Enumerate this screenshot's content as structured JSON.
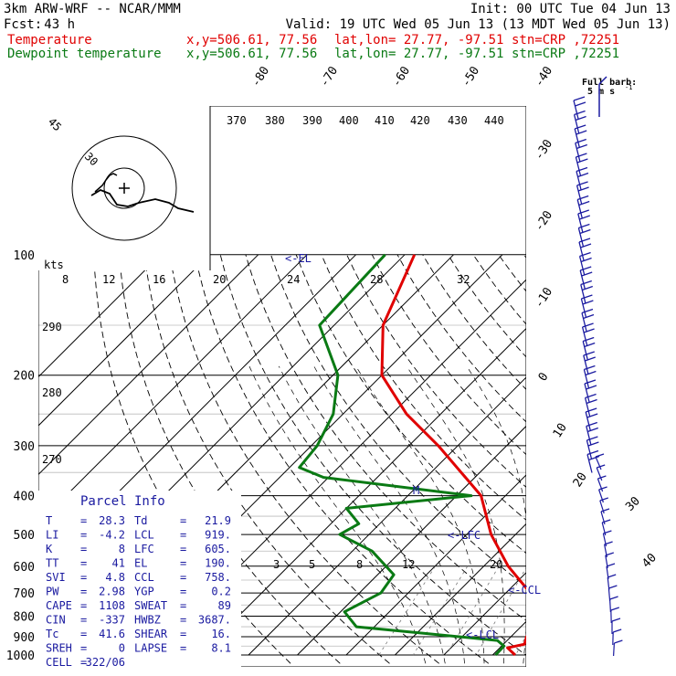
{
  "header": {
    "model": "3km ARW-WRF -- NCAR/MMM",
    "init": "Init: 00 UTC Tue 04 Jun 13",
    "fcst_label": "Fcst:",
    "fcst_value": "43 h",
    "valid": "Valid: 19 UTC Wed 05 Jun 13 (13 MDT Wed 05 Jun 13)",
    "temp_label": "Temperature",
    "dew_label": "Dewpoint temperature",
    "xy": "x,y=506.61, 77.56",
    "latlon": "lat,lon= 27.77, -97.51",
    "stn": "stn=CRP ,72251",
    "color_temp": "#e00000",
    "color_dew": "#0a7a14",
    "color_blue": "#1a1aa0"
  },
  "barb_legend": {
    "title": "Full barb:",
    "value": "5 m s"
  },
  "parcel_info": {
    "title": "Parcel Info",
    "left": [
      {
        "k": "T",
        "v": "28.3"
      },
      {
        "k": "LI",
        "v": "-4.2"
      },
      {
        "k": "K",
        "v": "8"
      },
      {
        "k": "TT",
        "v": "41"
      },
      {
        "k": "SVI",
        "v": "4.8"
      },
      {
        "k": "PW",
        "v": "2.98"
      },
      {
        "k": "CAPE",
        "v": "1108"
      },
      {
        "k": "CIN",
        "v": "-337"
      },
      {
        "k": "Tc",
        "v": "41.6"
      },
      {
        "k": "SREH",
        "v": "0"
      },
      {
        "k": "CELL",
        "v": "322/06"
      }
    ],
    "right": [
      {
        "k": "Td",
        "v": "21.9"
      },
      {
        "k": "LCL",
        "v": "919."
      },
      {
        "k": "LFC",
        "v": "605."
      },
      {
        "k": "EL",
        "v": "190."
      },
      {
        "k": "CCL",
        "v": "758."
      },
      {
        "k": "YGP",
        "v": "0.2"
      },
      {
        "k": "SWEAT",
        "v": "89"
      },
      {
        "k": "HWBZ",
        "v": "3687."
      },
      {
        "k": "SHEAR",
        "v": "16."
      },
      {
        "k": "LAPSE",
        "v": "8.1"
      }
    ]
  },
  "chart_data": {
    "type": "line",
    "diagram": "skew-T log-P",
    "pressure_levels": [
      100,
      200,
      300,
      400,
      500,
      600,
      700,
      800,
      900,
      1000
    ],
    "isotherm_labels": [
      "40",
      "30",
      "20",
      "10",
      "0",
      "-10",
      "-20",
      "-30",
      "-40",
      "-50",
      "-60",
      "-70",
      "-80"
    ],
    "dry_adiabat_labels": [
      "370",
      "380",
      "390",
      "400",
      "410",
      "420",
      "430",
      "440",
      "290",
      "280",
      "270"
    ],
    "mixing_ratio_labels": [
      "3",
      "5",
      "8",
      "12",
      "20"
    ],
    "mixing_ratio_labels_upper": [
      "8",
      "12",
      "16",
      "20",
      "24",
      "28",
      "32"
    ],
    "level_markers": [
      "<-EL",
      "<-LFC",
      "<-CCL",
      "<-LCL",
      "M"
    ],
    "hodograph_labels": [
      "kts",
      "30",
      "45"
    ],
    "series": [
      {
        "name": "Temperature",
        "color": "#e00000",
        "points": [
          [
            1000,
            24.6
          ],
          [
            960,
            21.6
          ],
          [
            940,
            24.3
          ],
          [
            900,
            23.2
          ],
          [
            850,
            23.5
          ],
          [
            800,
            21.3
          ],
          [
            700,
            15.0
          ],
          [
            600,
            5.0
          ],
          [
            500,
            -5.0
          ],
          [
            400,
            -15.0
          ],
          [
            300,
            -34.0
          ],
          [
            250,
            -47.0
          ],
          [
            200,
            -60.0
          ],
          [
            150,
            -70.0
          ],
          [
            100,
            -78.0
          ]
        ]
      },
      {
        "name": "Dewpoint temperature",
        "color": "#0a7a14",
        "points": [
          [
            1000,
            20.6
          ],
          [
            950,
            20.5
          ],
          [
            920,
            18.0
          ],
          [
            850,
            -13.7
          ],
          [
            780,
            -19.2
          ],
          [
            700,
            -15.6
          ],
          [
            630,
            -16.7
          ],
          [
            550,
            -26.0
          ],
          [
            500,
            -36.0
          ],
          [
            470,
            -34.3
          ],
          [
            430,
            -40.0
          ],
          [
            400,
            -17.0
          ],
          [
            360,
            -51.0
          ],
          [
            340,
            -58.0
          ],
          [
            300,
            -58.8
          ],
          [
            250,
            -62.0
          ],
          [
            200,
            -69.0
          ],
          [
            150,
            -83.0
          ],
          [
            100,
            -84.0
          ]
        ]
      }
    ]
  }
}
